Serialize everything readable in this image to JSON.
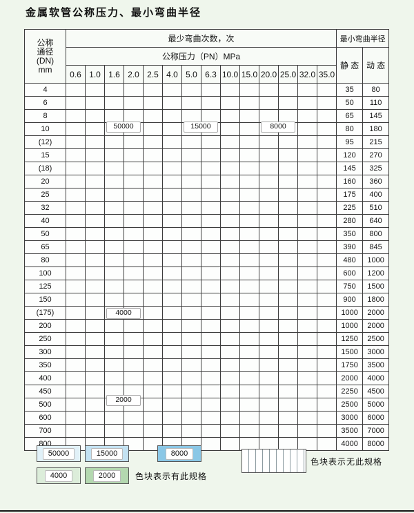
{
  "title": "金属软管公称压力、最小弯曲半径",
  "colors": {
    "c50000": "#e1f1f8",
    "c15000": "#c3e2f2",
    "c8000": "#8ac7e6",
    "c4000": "#dcedda",
    "c2000": "#b4d8b0"
  },
  "table": {
    "header": {
      "dn_label_lines": [
        "公称",
        "通径",
        "(DN)",
        "mm"
      ],
      "bend_times_label": "最少弯曲次数，次",
      "pressure_label": "公称压力（PN）MPa",
      "pressures": [
        "0.6",
        "1.0",
        "1.6",
        "2.0",
        "2.5",
        "4.0",
        "5.0",
        "6.3",
        "10.0",
        "15.0",
        "20.0",
        "25.0",
        "32.0",
        "35.0"
      ],
      "radius_label": "最小弯曲半径",
      "static_label": "静 态",
      "dynamic_label": "动 态"
    },
    "rows": [
      {
        "dn": "4",
        "st": "35",
        "dy": "80",
        "seg": [
          [
            "c50000",
            0,
            5
          ],
          [
            "c15000",
            6,
            8
          ],
          [
            "c8000",
            9,
            13
          ]
        ]
      },
      {
        "dn": "6",
        "st": "50",
        "dy": "110",
        "seg": [
          [
            "c50000",
            0,
            5
          ],
          [
            "c15000",
            6,
            8
          ],
          [
            "c8000",
            9,
            12
          ]
        ]
      },
      {
        "dn": "8",
        "st": "65",
        "dy": "145",
        "seg": [
          [
            "c50000",
            0,
            5
          ],
          [
            "c15000",
            6,
            8
          ],
          [
            "c8000",
            9,
            12
          ]
        ]
      },
      {
        "dn": "10",
        "st": "80",
        "dy": "180",
        "seg": [
          [
            "c50000",
            0,
            5
          ],
          [
            "c15000",
            6,
            8
          ],
          [
            "c8000",
            9,
            11
          ]
        ]
      },
      {
        "dn": "(12)",
        "st": "95",
        "dy": "215",
        "seg": [
          [
            "c50000",
            0,
            5
          ],
          [
            "c15000",
            6,
            8
          ],
          [
            "c8000",
            9,
            11
          ]
        ]
      },
      {
        "dn": "15",
        "st": "120",
        "dy": "270",
        "seg": [
          [
            "c50000",
            0,
            5
          ],
          [
            "c15000",
            6,
            8
          ],
          [
            "c8000",
            9,
            10
          ]
        ]
      },
      {
        "dn": "(18)",
        "st": "145",
        "dy": "325",
        "seg": [
          [
            "c50000",
            0,
            5
          ],
          [
            "c15000",
            6,
            8
          ],
          [
            "c8000",
            9,
            10
          ]
        ]
      },
      {
        "dn": "20",
        "st": "160",
        "dy": "360",
        "seg": [
          [
            "c50000",
            0,
            5
          ],
          [
            "c15000",
            6,
            8
          ],
          [
            "c8000",
            9,
            10
          ]
        ]
      },
      {
        "dn": "25",
        "st": "175",
        "dy": "400",
        "seg": [
          [
            "c50000",
            0,
            5
          ],
          [
            "c15000",
            6,
            8
          ],
          [
            "c8000",
            9,
            9
          ]
        ]
      },
      {
        "dn": "32",
        "st": "225",
        "dy": "510",
        "seg": [
          [
            "c50000",
            0,
            5
          ],
          [
            "c15000",
            6,
            8
          ],
          [
            "c8000",
            9,
            9
          ]
        ]
      },
      {
        "dn": "40",
        "st": "280",
        "dy": "640",
        "seg": [
          [
            "c50000",
            0,
            5
          ],
          [
            "c15000",
            6,
            8
          ],
          [
            "c8000",
            9,
            9
          ]
        ]
      },
      {
        "dn": "50",
        "st": "350",
        "dy": "800",
        "seg": [
          [
            "c50000",
            0,
            5
          ],
          [
            "c15000",
            6,
            7
          ],
          [
            "c8000",
            8,
            8
          ]
        ]
      },
      {
        "dn": "65",
        "st": "390",
        "dy": "845",
        "seg": [
          [
            "c50000",
            0,
            5
          ],
          [
            "c15000",
            6,
            7
          ],
          [
            "c8000",
            8,
            8
          ]
        ]
      },
      {
        "dn": "80",
        "st": "480",
        "dy": "1000",
        "seg": [
          [
            "c50000",
            0,
            5
          ],
          [
            "c15000",
            6,
            7
          ],
          [
            "c8000",
            8,
            8
          ]
        ]
      },
      {
        "dn": "100",
        "st": "600",
        "dy": "1200",
        "seg": [
          [
            "c4000",
            0,
            5
          ]
        ]
      },
      {
        "dn": "125",
        "st": "750",
        "dy": "1500",
        "seg": [
          [
            "c4000",
            0,
            5
          ]
        ]
      },
      {
        "dn": "150",
        "st": "900",
        "dy": "1800",
        "seg": [
          [
            "c4000",
            0,
            5
          ]
        ]
      },
      {
        "dn": "(175)",
        "st": "1000",
        "dy": "2000",
        "seg": [
          [
            "c4000",
            0,
            5
          ]
        ]
      },
      {
        "dn": "200",
        "st": "1000",
        "dy": "2000",
        "seg": [
          [
            "c4000",
            0,
            5
          ]
        ]
      },
      {
        "dn": "250",
        "st": "1250",
        "dy": "2500",
        "seg": [
          [
            "c4000",
            0,
            5
          ]
        ]
      },
      {
        "dn": "300",
        "st": "1500",
        "dy": "3000",
        "seg": [
          [
            "c4000",
            0,
            5
          ]
        ]
      },
      {
        "dn": "350",
        "st": "1750",
        "dy": "3500",
        "seg": [
          [
            "c2000",
            0,
            1
          ],
          [
            "c4000",
            2,
            4
          ]
        ]
      },
      {
        "dn": "400",
        "st": "2000",
        "dy": "4000",
        "seg": [
          [
            "c2000",
            0,
            1
          ],
          [
            "c4000",
            2,
            4
          ]
        ]
      },
      {
        "dn": "450",
        "st": "2250",
        "dy": "4500",
        "seg": [
          [
            "c2000",
            0,
            2
          ],
          [
            "c4000",
            3,
            4
          ]
        ]
      },
      {
        "dn": "500",
        "st": "2500",
        "dy": "5000",
        "seg": [
          [
            "c2000",
            0,
            2
          ],
          [
            "c4000",
            3,
            4
          ]
        ]
      },
      {
        "dn": "600",
        "st": "3000",
        "dy": "6000",
        "seg": [
          [
            "c2000",
            0,
            3
          ],
          [
            "c4000",
            4,
            4
          ]
        ]
      },
      {
        "dn": "700",
        "st": "3500",
        "dy": "7000",
        "seg": [
          [
            "c2000",
            0,
            3
          ],
          [
            "c4000",
            4,
            4
          ]
        ]
      },
      {
        "dn": "800",
        "st": "4000",
        "dy": "8000",
        "seg": [
          [
            "c2000",
            0,
            4
          ]
        ]
      }
    ],
    "overlays": [
      {
        "label": "50000",
        "row": 3,
        "col": 2,
        "span": 2
      },
      {
        "label": "15000",
        "row": 3,
        "col": 6,
        "span": 2
      },
      {
        "label": "8000",
        "row": 3,
        "col": 10,
        "span": 2
      },
      {
        "label": "4000",
        "row": 18,
        "col": 2,
        "span": 2
      },
      {
        "label": "2000",
        "row": 25,
        "col": 2,
        "span": 2
      }
    ]
  },
  "legend": {
    "items": [
      {
        "label": "50000",
        "k": "c50000"
      },
      {
        "label": "15000",
        "k": "c15000"
      },
      {
        "label": "8000",
        "k": "c8000"
      },
      {
        "label": "4000",
        "k": "c4000"
      },
      {
        "label": "2000",
        "k": "c2000"
      }
    ],
    "no_spec_text": "色块表示无此规格",
    "has_spec_text": "色块表示有此规格"
  }
}
